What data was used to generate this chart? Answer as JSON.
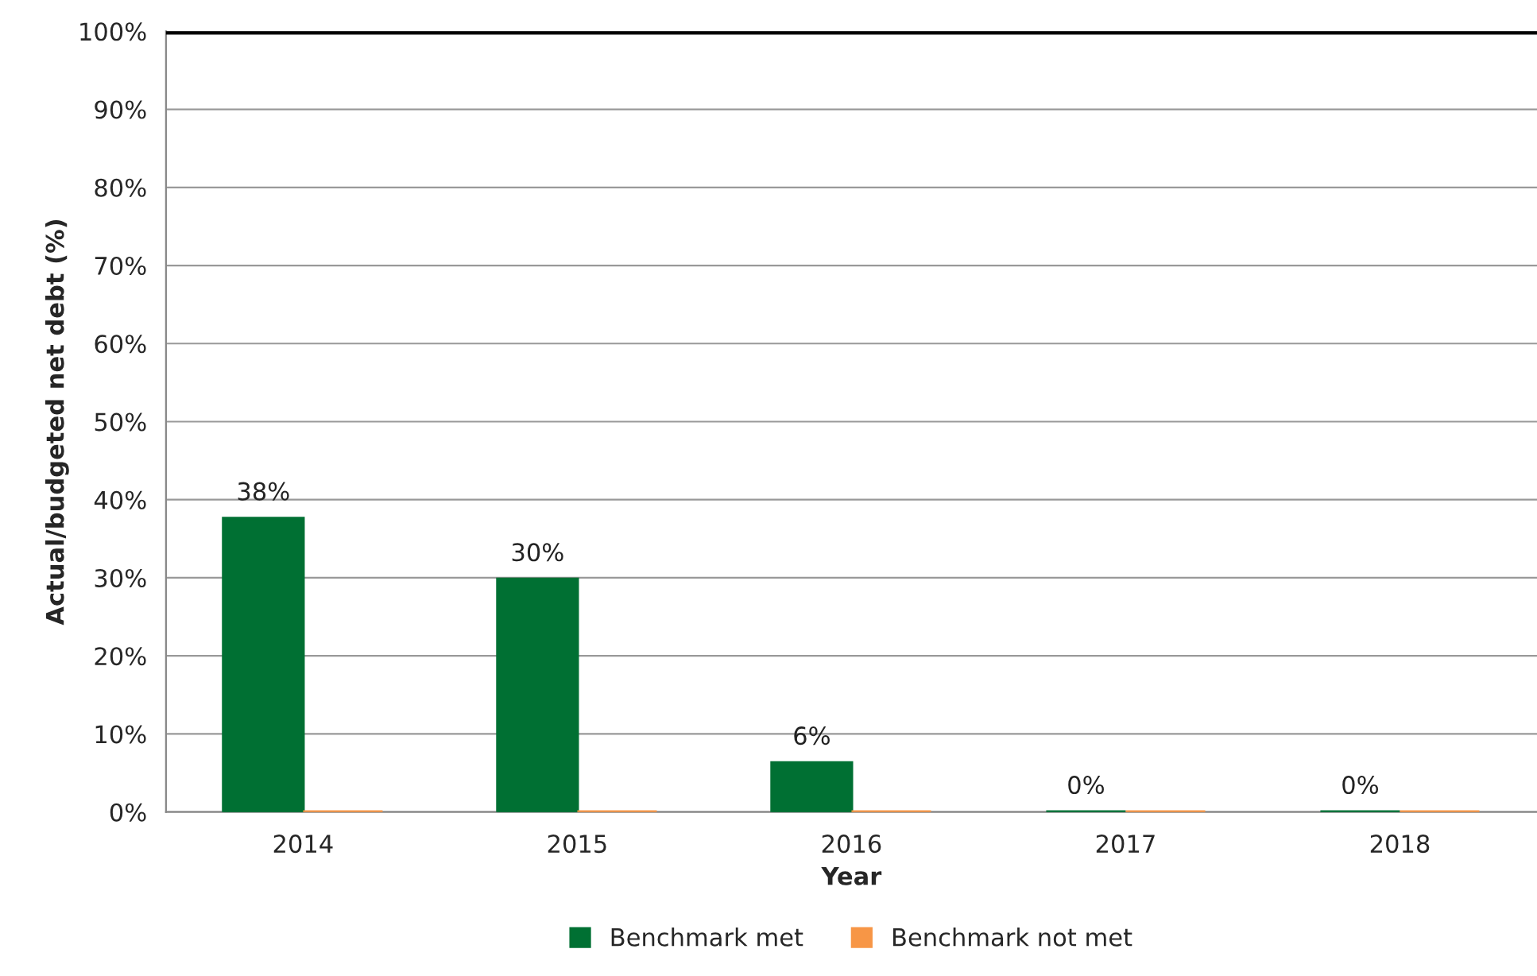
{
  "chart_data": {
    "type": "bar",
    "xlabel": "Year",
    "ylabel": "Actual/budgeted net debt (%)",
    "categories": [
      "2014",
      "2015",
      "2016",
      "2017",
      "2018"
    ],
    "series": [
      {
        "name": "Benchmark met",
        "color": "#007033",
        "values": [
          37.6,
          29.8,
          6.3,
          0,
          0
        ],
        "value_labels": [
          "38%",
          "30%",
          "6%",
          "0%",
          "0%"
        ]
      },
      {
        "name": "Benchmark not met",
        "color": "#f79646",
        "values": [
          0,
          0,
          0,
          0,
          0
        ]
      }
    ],
    "ylim": [
      0,
      100
    ],
    "yticks": [
      {
        "value": 0,
        "label": "0%"
      },
      {
        "value": 10,
        "label": "10%"
      },
      {
        "value": 20,
        "label": "20%"
      },
      {
        "value": 30,
        "label": "30%"
      },
      {
        "value": 40,
        "label": "40%"
      },
      {
        "value": 50,
        "label": "50%"
      },
      {
        "value": 60,
        "label": "60%"
      },
      {
        "value": 70,
        "label": "70%"
      },
      {
        "value": 80,
        "label": "80%"
      },
      {
        "value": 90,
        "label": "90%"
      },
      {
        "value": 100,
        "label": "100%"
      }
    ],
    "ref_lines": [
      {
        "axis": "y",
        "value": 100,
        "color": "#000000"
      }
    ],
    "grid": "y",
    "legend": "bottom"
  }
}
